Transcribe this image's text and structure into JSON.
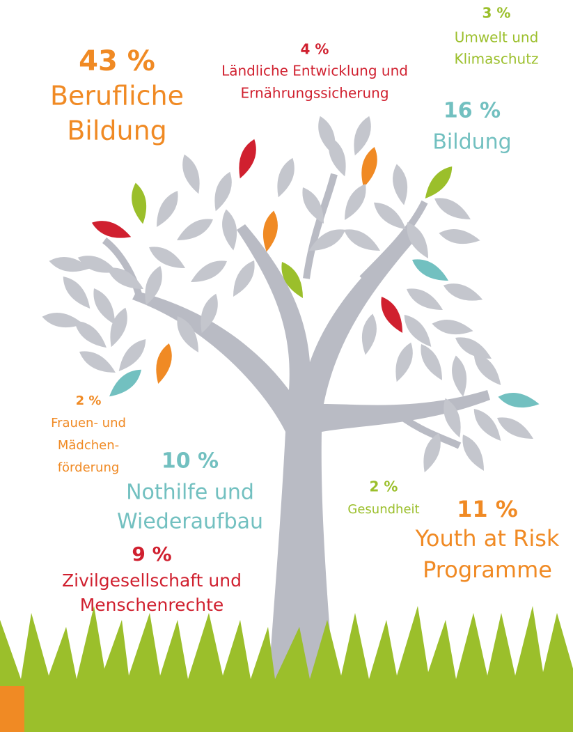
{
  "labels": [
    {
      "percent": "43 %",
      "lines": [
        "Berufliche",
        "Bildung"
      ]
    },
    {
      "percent": "4 %",
      "lines": [
        "Ländliche Entwicklung und",
        "Ernährungssicherung"
      ]
    },
    {
      "percent": "3 %",
      "lines": [
        "Umwelt und",
        "Klimaschutz"
      ]
    },
    {
      "percent": "16 %",
      "lines": [
        "Bildung"
      ]
    },
    {
      "percent": "2 %",
      "lines": [
        "Frauen- und",
        "Mädchen-",
        "förderung"
      ]
    },
    {
      "percent": "10 %",
      "lines": [
        "Nothilfe und",
        "Wiederaufbau"
      ]
    },
    {
      "percent": "9 %",
      "lines": [
        "Zivilgesellschaft und",
        "Menschenrechte"
      ]
    },
    {
      "percent": "2 %",
      "lines": [
        "Gesundheit"
      ]
    },
    {
      "percent": "11 %",
      "lines": [
        "Youth at Risk",
        "Programme"
      ]
    }
  ]
}
